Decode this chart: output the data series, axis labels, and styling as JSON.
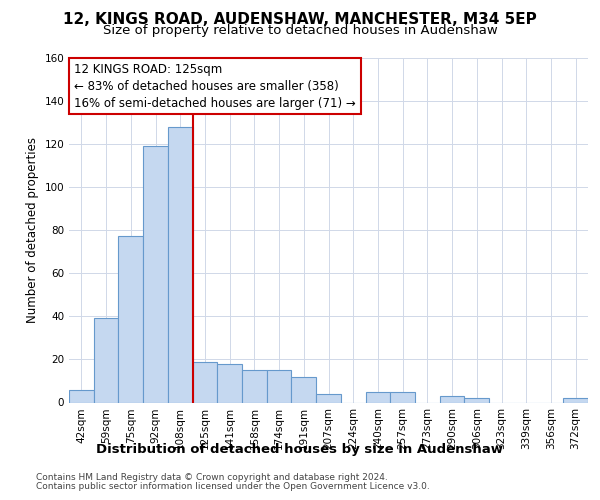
{
  "title1": "12, KINGS ROAD, AUDENSHAW, MANCHESTER, M34 5EP",
  "title2": "Size of property relative to detached houses in Audenshaw",
  "xlabel": "Distribution of detached houses by size in Audenshaw",
  "ylabel": "Number of detached properties",
  "categories": [
    "42sqm",
    "59sqm",
    "75sqm",
    "92sqm",
    "108sqm",
    "125sqm",
    "141sqm",
    "158sqm",
    "174sqm",
    "191sqm",
    "207sqm",
    "224sqm",
    "240sqm",
    "257sqm",
    "273sqm",
    "290sqm",
    "306sqm",
    "323sqm",
    "339sqm",
    "356sqm",
    "372sqm"
  ],
  "values": [
    6,
    39,
    77,
    119,
    128,
    19,
    18,
    15,
    15,
    12,
    4,
    0,
    5,
    5,
    0,
    3,
    2,
    0,
    0,
    0,
    2
  ],
  "bar_color": "#c5d8f0",
  "bar_edge_color": "#6699cc",
  "property_index": 4,
  "annotation_line1": "12 KINGS ROAD: 125sqm",
  "annotation_line2": "← 83% of detached houses are smaller (358)",
  "annotation_line3": "16% of semi-detached houses are larger (71) →",
  "vline_color": "#cc0000",
  "annotation_box_facecolor": "#ffffff",
  "annotation_box_edgecolor": "#cc0000",
  "ylim": [
    0,
    160
  ],
  "yticks": [
    0,
    20,
    40,
    60,
    80,
    100,
    120,
    140,
    160
  ],
  "footer1": "Contains HM Land Registry data © Crown copyright and database right 2024.",
  "footer2": "Contains public sector information licensed under the Open Government Licence v3.0.",
  "bg_color": "#ffffff",
  "plot_bg_color": "#ffffff",
  "grid_color": "#d0d8e8",
  "title1_fontsize": 11,
  "title2_fontsize": 9.5,
  "ylabel_fontsize": 8.5,
  "xlabel_fontsize": 9.5,
  "tick_fontsize": 7.5,
  "footer_fontsize": 6.5,
  "annot_fontsize": 8.5
}
